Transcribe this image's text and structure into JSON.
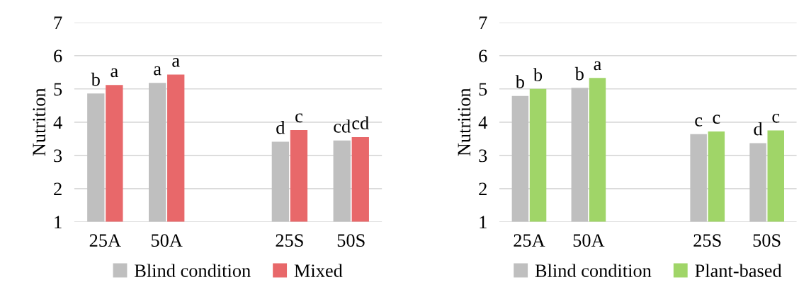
{
  "chart_data": [
    {
      "type": "bar",
      "ylabel": "Nutrition",
      "categories": [
        "25A",
        "50A",
        null,
        "25S",
        "50S"
      ],
      "ylim": [
        1,
        7
      ],
      "yticks": [
        1,
        2,
        3,
        4,
        5,
        6,
        7
      ],
      "grid": "y",
      "legend": "bottom",
      "series": [
        {
          "name": "Blind condition",
          "color": "#bfbfbf",
          "values": [
            4.86,
            5.18,
            null,
            3.41,
            3.45
          ],
          "value_labels": [
            "b",
            "a",
            null,
            "d",
            "cd"
          ]
        },
        {
          "name": "Mixed",
          "color": "#e8686a",
          "values": [
            5.12,
            5.43,
            null,
            3.76,
            3.55
          ],
          "value_labels": [
            "a",
            "a",
            null,
            "c",
            "cd"
          ]
        }
      ]
    },
    {
      "type": "bar",
      "ylabel": "Nutrition",
      "categories": [
        "25A",
        "50A",
        null,
        "25S",
        "50S"
      ],
      "ylim": [
        1,
        7
      ],
      "yticks": [
        1,
        2,
        3,
        4,
        5,
        6,
        7
      ],
      "grid": "y",
      "legend": "bottom",
      "series": [
        {
          "name": "Blind condition",
          "color": "#bfbfbf",
          "values": [
            4.79,
            5.03,
            null,
            3.64,
            3.37
          ],
          "value_labels": [
            "b",
            "b",
            null,
            "c",
            "d"
          ]
        },
        {
          "name": "Plant-based",
          "color": "#a0d568",
          "values": [
            5.0,
            5.33,
            null,
            3.72,
            3.75
          ],
          "value_labels": [
            "b",
            "a",
            null,
            "c",
            "c"
          ]
        }
      ]
    }
  ]
}
